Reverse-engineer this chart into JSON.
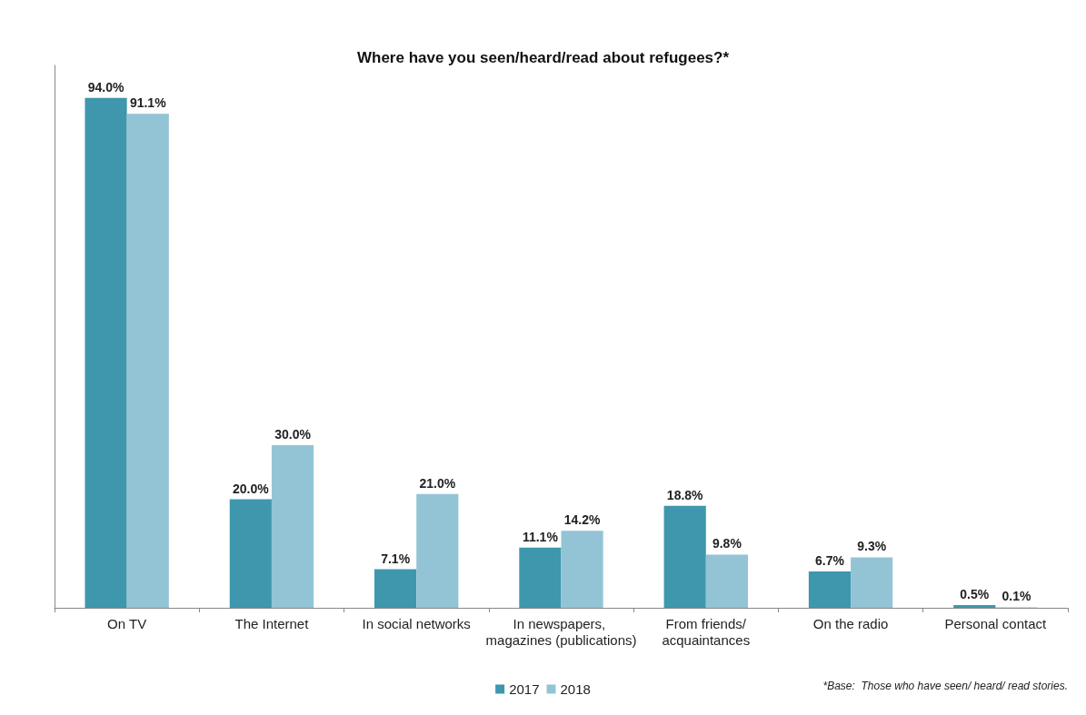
{
  "chart_data": {
    "type": "bar",
    "title": "Where have you seen/heard/read about refugees?*",
    "categories": [
      "On TV",
      "The Internet",
      "In social networks",
      "In newspapers, magazines (publications)",
      "From friends/acquaintances",
      "On the radio",
      "Personal contact"
    ],
    "series": [
      {
        "name": "2017",
        "color": "#3f97ad",
        "values": [
          94.0,
          20.0,
          7.1,
          11.1,
          18.8,
          6.7,
          0.5
        ],
        "value_labels": [
          "94.0%",
          "20.0%",
          "7.1%",
          "11.1%",
          "18.8%",
          "6.7%",
          "0.5%"
        ]
      },
      {
        "name": "2018",
        "color": "#93c4d6",
        "values": [
          91.1,
          30.0,
          21.0,
          14.2,
          9.8,
          9.3,
          0.1
        ],
        "value_labels": [
          "91.1%",
          "30.0%",
          "21.0%",
          "14.2%",
          "9.8%",
          "9.3%",
          "0.1%"
        ]
      }
    ],
    "relative": false,
    "legend": "bottom",
    "grid": false,
    "annotations": [
      "*Base:  Those who have seen/ heard/ read stories."
    ]
  }
}
